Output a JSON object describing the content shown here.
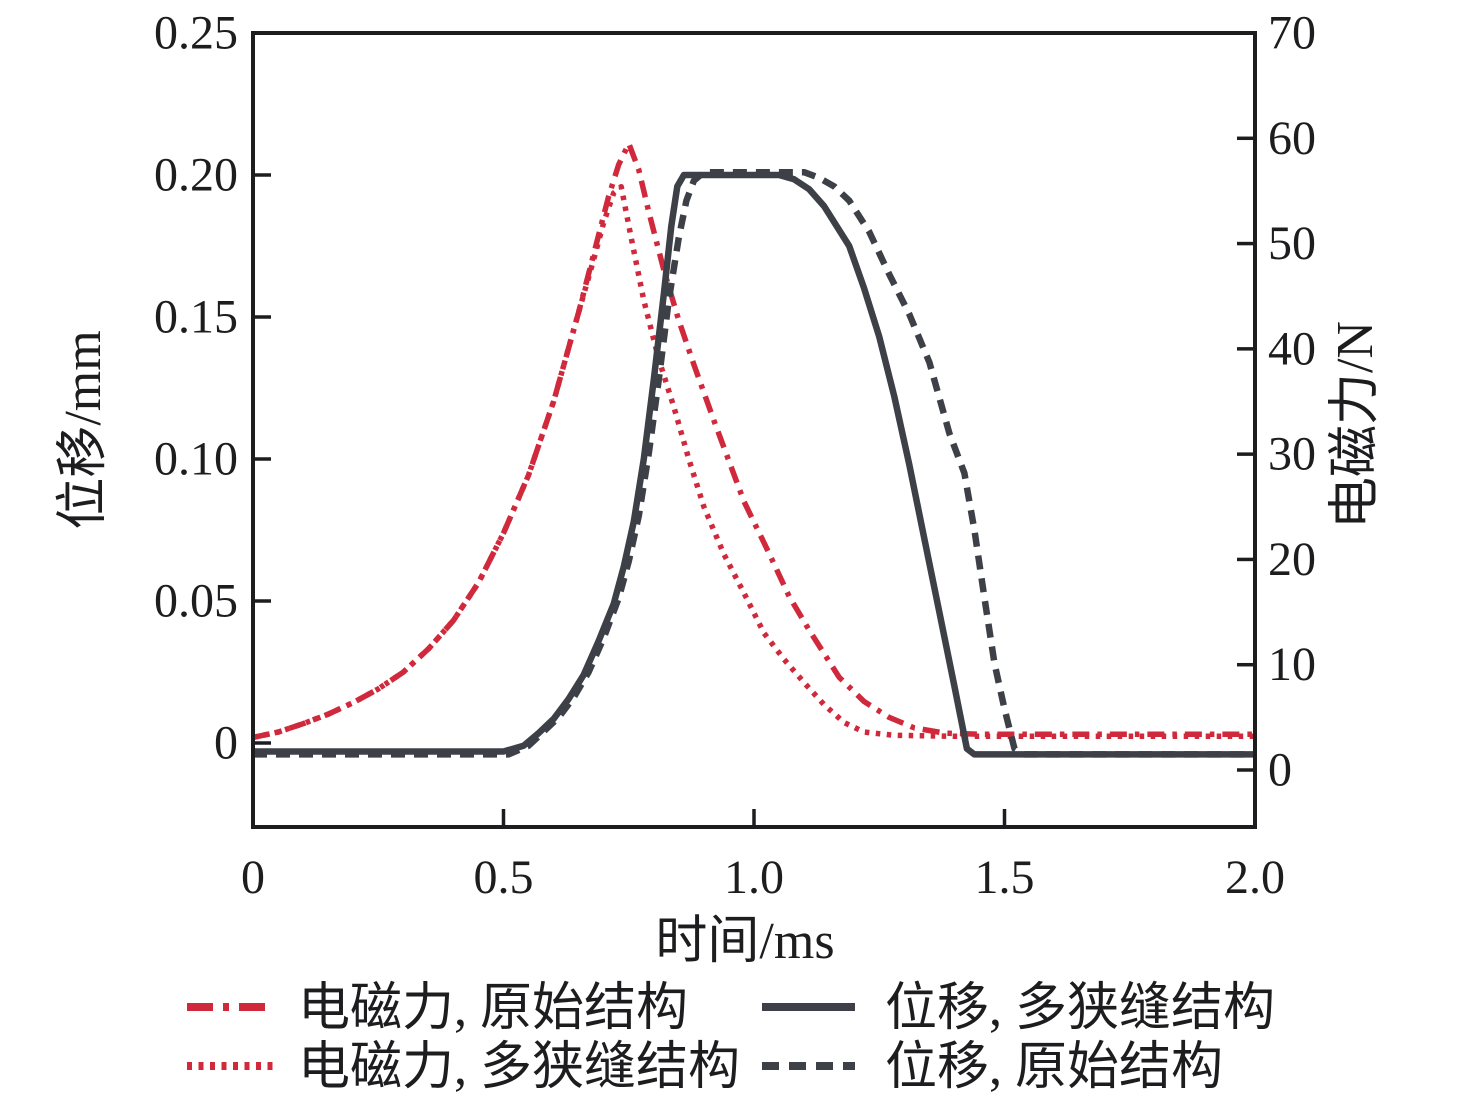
{
  "figure": {
    "background": "#ffffff",
    "frame_color": "#1d1d1f",
    "text_color": "#1d1d1f"
  },
  "chart_data": {
    "type": "line",
    "title": "",
    "x_axis": {
      "label": "时间/ms",
      "range": [
        0,
        2.0
      ],
      "ticks": [
        {
          "value": 0,
          "label": "0"
        },
        {
          "value": 0.5,
          "label": "0.5"
        },
        {
          "value": 1.0,
          "label": "1.0"
        },
        {
          "value": 1.5,
          "label": "1.5"
        },
        {
          "value": 2.0,
          "label": "2.0"
        }
      ]
    },
    "y_axis_left": {
      "label": "位移/mm",
      "range": [
        -0.03,
        0.25
      ],
      "ticks": [
        {
          "value": 0.25,
          "label": "0.25"
        },
        {
          "value": 0.2,
          "label": "0.20"
        },
        {
          "value": 0.15,
          "label": "0.15"
        },
        {
          "value": 0.1,
          "label": "0.10"
        },
        {
          "value": 0.05,
          "label": "0.05"
        },
        {
          "value": 0,
          "label": "0"
        }
      ]
    },
    "y_axis_right": {
      "label": "电磁力/N",
      "range": [
        -5.4,
        70
      ],
      "ticks": [
        {
          "value": 70,
          "label": "70"
        },
        {
          "value": 60,
          "label": "60"
        },
        {
          "value": 50,
          "label": "50"
        },
        {
          "value": 40,
          "label": "40"
        },
        {
          "value": 30,
          "label": "30"
        },
        {
          "value": 20,
          "label": "20"
        },
        {
          "value": 10,
          "label": "10"
        },
        {
          "value": 0,
          "label": "0"
        }
      ]
    },
    "series": [
      {
        "id": "force-original",
        "label": "电磁力, 原始结构",
        "axis": "right",
        "color": "#d0293c",
        "width": 5.5,
        "dash": "17 8 4.5 8",
        "legend_dash": "26 10 6 10",
        "points": [
          [
            0,
            3.1
          ],
          [
            0.05,
            3.6
          ],
          [
            0.1,
            4.4
          ],
          [
            0.15,
            5.3
          ],
          [
            0.2,
            6.4
          ],
          [
            0.25,
            7.7
          ],
          [
            0.3,
            9.3
          ],
          [
            0.35,
            11.5
          ],
          [
            0.4,
            14.2
          ],
          [
            0.45,
            17.8
          ],
          [
            0.5,
            22.5
          ],
          [
            0.55,
            28.0
          ],
          [
            0.6,
            35.0
          ],
          [
            0.65,
            43.5
          ],
          [
            0.68,
            49.0
          ],
          [
            0.71,
            54.5
          ],
          [
            0.73,
            57.5
          ],
          [
            0.75,
            59.5
          ],
          [
            0.77,
            57.0
          ],
          [
            0.79,
            53.0
          ],
          [
            0.82,
            47.5
          ],
          [
            0.85,
            42.7
          ],
          [
            0.88,
            38.5
          ],
          [
            0.92,
            33.2
          ],
          [
            0.98,
            25.5
          ],
          [
            1.03,
            20.6
          ],
          [
            1.07,
            16.5
          ],
          [
            1.11,
            13.3
          ],
          [
            1.17,
            8.8
          ],
          [
            1.22,
            6.5
          ],
          [
            1.27,
            5.0
          ],
          [
            1.32,
            4.0
          ],
          [
            1.38,
            3.5
          ],
          [
            1.45,
            3.4
          ],
          [
            1.6,
            3.4
          ],
          [
            1.8,
            3.4
          ],
          [
            2.0,
            3.4
          ]
        ]
      },
      {
        "id": "force-multislit",
        "label": "电磁力, 多狭缝结构",
        "axis": "right",
        "color": "#d0293c",
        "width": 5.5,
        "dash": "4.5 6.5",
        "legend_dash": "5 6.5",
        "points": [
          [
            0,
            3.1
          ],
          [
            0.05,
            3.6
          ],
          [
            0.1,
            4.4
          ],
          [
            0.15,
            5.3
          ],
          [
            0.2,
            6.4
          ],
          [
            0.25,
            7.7
          ],
          [
            0.3,
            9.3
          ],
          [
            0.35,
            11.5
          ],
          [
            0.4,
            14.2
          ],
          [
            0.45,
            17.8
          ],
          [
            0.5,
            22.5
          ],
          [
            0.55,
            28.0
          ],
          [
            0.6,
            35.0
          ],
          [
            0.65,
            43.5
          ],
          [
            0.68,
            48.5
          ],
          [
            0.7,
            52.0
          ],
          [
            0.72,
            54.8
          ],
          [
            0.735,
            55.4
          ],
          [
            0.755,
            50.5
          ],
          [
            0.78,
            44.6
          ],
          [
            0.81,
            39.0
          ],
          [
            0.84,
            34.5
          ],
          [
            0.87,
            29.5
          ],
          [
            0.9,
            25.0
          ],
          [
            0.94,
            20.5
          ],
          [
            0.98,
            16.8
          ],
          [
            1.02,
            13.0
          ],
          [
            1.06,
            10.5
          ],
          [
            1.1,
            8.3
          ],
          [
            1.14,
            6.2
          ],
          [
            1.18,
            4.5
          ],
          [
            1.22,
            3.6
          ],
          [
            1.28,
            3.3
          ],
          [
            1.4,
            3.2
          ],
          [
            1.6,
            3.2
          ],
          [
            1.8,
            3.2
          ],
          [
            2.0,
            3.2
          ]
        ]
      },
      {
        "id": "disp-multislit",
        "label": "位移, 多狭缝结构",
        "axis": "left",
        "color": "#3d4147",
        "width": 6.5,
        "dash": "",
        "legend_dash": "",
        "points": [
          [
            0,
            -0.003
          ],
          [
            0.3,
            -0.003
          ],
          [
            0.5,
            -0.003
          ],
          [
            0.54,
            -0.001
          ],
          [
            0.57,
            0.0035
          ],
          [
            0.6,
            0.0085
          ],
          [
            0.63,
            0.0155
          ],
          [
            0.66,
            0.024
          ],
          [
            0.69,
            0.036
          ],
          [
            0.72,
            0.049
          ],
          [
            0.74,
            0.062
          ],
          [
            0.76,
            0.078
          ],
          [
            0.78,
            0.1
          ],
          [
            0.8,
            0.128
          ],
          [
            0.82,
            0.158
          ],
          [
            0.835,
            0.182
          ],
          [
            0.847,
            0.196
          ],
          [
            0.86,
            0.2
          ],
          [
            1.05,
            0.2
          ],
          [
            1.08,
            0.1985
          ],
          [
            1.11,
            0.195
          ],
          [
            1.14,
            0.189
          ],
          [
            1.19,
            0.175
          ],
          [
            1.22,
            0.16
          ],
          [
            1.25,
            0.143
          ],
          [
            1.28,
            0.122
          ],
          [
            1.31,
            0.098
          ],
          [
            1.34,
            0.072
          ],
          [
            1.37,
            0.046
          ],
          [
            1.4,
            0.02
          ],
          [
            1.425,
            -0.002
          ],
          [
            1.44,
            -0.004
          ],
          [
            1.6,
            -0.004
          ],
          [
            1.8,
            -0.004
          ],
          [
            2.0,
            -0.004
          ]
        ]
      },
      {
        "id": "disp-original",
        "label": "位移, 原始结构",
        "axis": "left",
        "color": "#3d4147",
        "width": 6.5,
        "dash": "14 9",
        "legend_dash": "17 10",
        "points": [
          [
            0,
            -0.004
          ],
          [
            0.3,
            -0.004
          ],
          [
            0.51,
            -0.004
          ],
          [
            0.55,
            -0.001
          ],
          [
            0.58,
            0.004
          ],
          [
            0.61,
            0.009
          ],
          [
            0.64,
            0.016
          ],
          [
            0.67,
            0.025
          ],
          [
            0.7,
            0.037
          ],
          [
            0.73,
            0.051
          ],
          [
            0.75,
            0.064
          ],
          [
            0.77,
            0.08
          ],
          [
            0.79,
            0.102
          ],
          [
            0.81,
            0.128
          ],
          [
            0.83,
            0.156
          ],
          [
            0.85,
            0.178
          ],
          [
            0.865,
            0.191
          ],
          [
            0.88,
            0.198
          ],
          [
            0.9,
            0.201
          ],
          [
            1.1,
            0.201
          ],
          [
            1.13,
            0.199
          ],
          [
            1.16,
            0.196
          ],
          [
            1.19,
            0.191
          ],
          [
            1.23,
            0.18
          ],
          [
            1.27,
            0.165
          ],
          [
            1.31,
            0.151
          ],
          [
            1.35,
            0.134
          ],
          [
            1.39,
            0.109
          ],
          [
            1.42,
            0.095
          ],
          [
            1.44,
            0.075
          ],
          [
            1.46,
            0.051
          ],
          [
            1.48,
            0.028
          ],
          [
            1.5,
            0.012
          ],
          [
            1.52,
            -0.002
          ],
          [
            1.54,
            -0.004
          ],
          [
            1.7,
            -0.004
          ],
          [
            2.0,
            -0.004
          ]
        ]
      }
    ],
    "legend": {
      "position": "bottom",
      "entries_order": [
        "force-original",
        "force-multislit",
        "disp-multislit",
        "disp-original"
      ]
    },
    "grid": false
  }
}
